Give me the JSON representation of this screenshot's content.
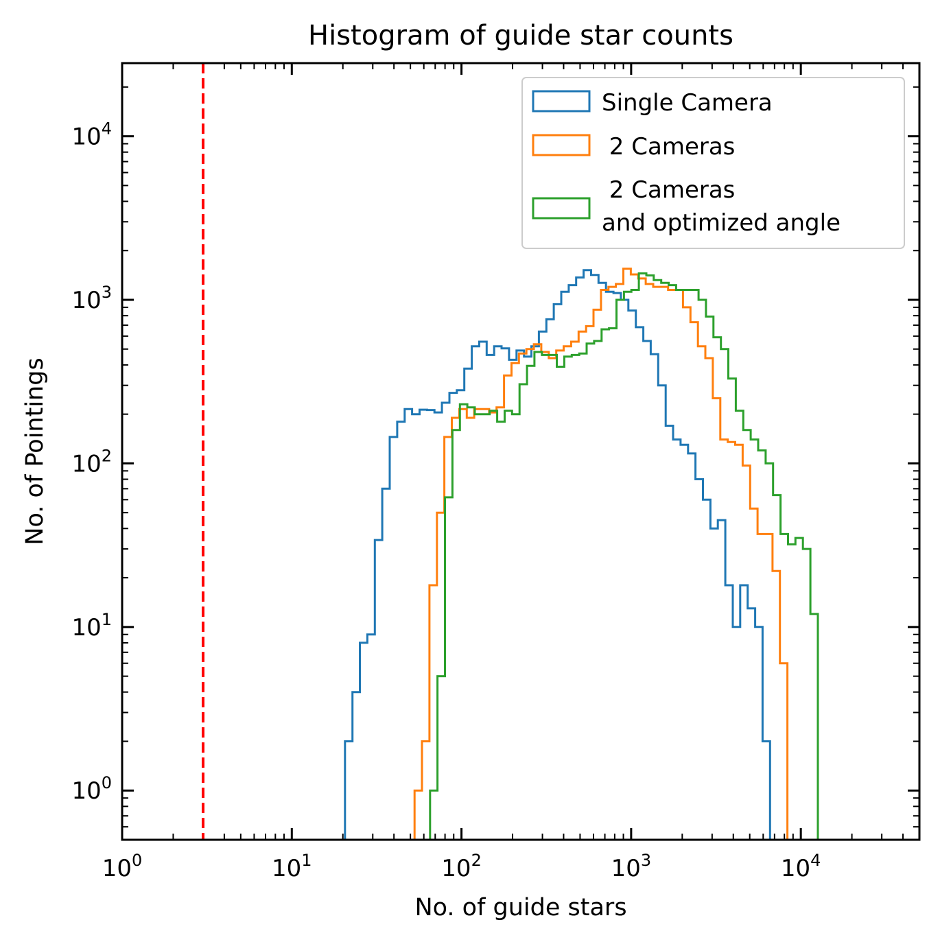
{
  "chart_data": {
    "type": "histogram-step",
    "title": "Histogram of guide star counts",
    "xlabel": "No. of guide stars",
    "ylabel": "No. of Pointings",
    "xscale": "log",
    "yscale": "log",
    "xlim": [
      1,
      50000
    ],
    "ylim": [
      0.5,
      28000
    ],
    "x_major_ticks": [
      {
        "value": 1,
        "base": "10",
        "exp": "0"
      },
      {
        "value": 10,
        "base": "10",
        "exp": "1"
      },
      {
        "value": 100,
        "base": "10",
        "exp": "2"
      },
      {
        "value": 1000,
        "base": "10",
        "exp": "3"
      },
      {
        "value": 10000,
        "base": "10",
        "exp": "4"
      }
    ],
    "y_major_ticks": [
      {
        "value": 1,
        "base": "10",
        "exp": "0"
      },
      {
        "value": 10,
        "base": "10",
        "exp": "1"
      },
      {
        "value": 100,
        "base": "10",
        "exp": "2"
      },
      {
        "value": 1000,
        "base": "10",
        "exp": "3"
      },
      {
        "value": 10000,
        "base": "10",
        "exp": "4"
      }
    ],
    "threshold_line": {
      "x": 3,
      "color": "#ff0000",
      "style": "dashed"
    },
    "legend": {
      "position": "upper-right",
      "entries": [
        "Single Camera",
        " 2 Cameras",
        " 2 Cameras\nand optimized angle"
      ]
    },
    "series": [
      {
        "name": "Single Camera",
        "color": "#1f77b4",
        "bin_start": 18.6,
        "bin_ratio": 1.1065,
        "counts": [
          0.4,
          2,
          4,
          8,
          9,
          34,
          70,
          145,
          180,
          215,
          200,
          213,
          212,
          205,
          235,
          270,
          280,
          380,
          520,
          555,
          460,
          520,
          505,
          430,
          490,
          450,
          520,
          640,
          760,
          940,
          1120,
          1230,
          1370,
          1520,
          1420,
          1270,
          1120,
          1100,
          1000,
          860,
          680,
          560,
          465,
          300,
          170,
          140,
          130,
          115,
          80,
          60,
          40,
          45,
          18,
          10,
          18,
          13,
          10,
          2,
          0.4
        ]
      },
      {
        "name": " 2 Cameras",
        "color": "#ff7f0e",
        "bin_start": 47.8,
        "bin_ratio": 1.1065,
        "counts": [
          0.4,
          1,
          2,
          18,
          50,
          145,
          190,
          215,
          190,
          215,
          215,
          205,
          220,
          345,
          410,
          470,
          500,
          535,
          480,
          440,
          490,
          520,
          555,
          640,
          690,
          870,
          1150,
          1200,
          1250,
          1550,
          1430,
          1350,
          1250,
          1200,
          1200,
          1150,
          1150,
          900,
          730,
          520,
          440,
          250,
          140,
          135,
          130,
          97,
          53,
          37,
          37,
          22,
          6,
          0.4
        ]
      },
      {
        "name": " 2 Cameras\nand optimized angle",
        "color": "#2ca02c",
        "bin_start": 59.0,
        "bin_ratio": 1.1065,
        "counts": [
          0.4,
          1,
          5,
          62,
          160,
          230,
          220,
          200,
          200,
          210,
          180,
          210,
          200,
          305,
          395,
          480,
          460,
          460,
          390,
          450,
          460,
          470,
          540,
          560,
          660,
          670,
          1000,
          1120,
          1150,
          1450,
          1410,
          1320,
          1270,
          1230,
          1150,
          1150,
          1150,
          1000,
          790,
          590,
          500,
          330,
          210,
          160,
          140,
          120,
          100,
          64,
          37,
          32,
          35,
          30,
          12,
          0.4
        ]
      }
    ]
  }
}
